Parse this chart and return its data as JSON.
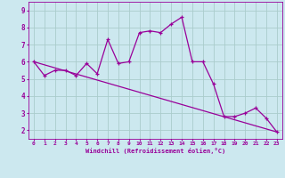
{
  "xlabel": "Windchill (Refroidissement éolien,°C)",
  "bg_color": "#cce8ef",
  "line_color": "#990099",
  "grid_color": "#aacccc",
  "xlim": [
    -0.5,
    23.5
  ],
  "ylim": [
    1.5,
    9.5
  ],
  "xticks": [
    0,
    1,
    2,
    3,
    4,
    5,
    6,
    7,
    8,
    9,
    10,
    11,
    12,
    13,
    14,
    15,
    16,
    17,
    18,
    19,
    20,
    21,
    22,
    23
  ],
  "yticks": [
    2,
    3,
    4,
    5,
    6,
    7,
    8,
    9
  ],
  "series1_x": [
    0,
    1,
    2,
    3,
    4,
    5,
    6,
    7,
    8,
    9,
    10,
    11,
    12,
    13,
    14,
    15,
    16,
    17,
    18,
    19,
    20,
    21,
    22,
    23
  ],
  "series1_y": [
    6.0,
    5.2,
    5.5,
    5.5,
    5.2,
    5.9,
    5.3,
    7.3,
    5.9,
    6.0,
    7.7,
    7.8,
    7.7,
    8.2,
    8.6,
    6.0,
    6.0,
    4.7,
    2.8,
    2.8,
    3.0,
    3.3,
    2.7,
    1.9
  ],
  "series2_x": [
    0,
    23
  ],
  "series2_y": [
    6.0,
    1.9
  ]
}
